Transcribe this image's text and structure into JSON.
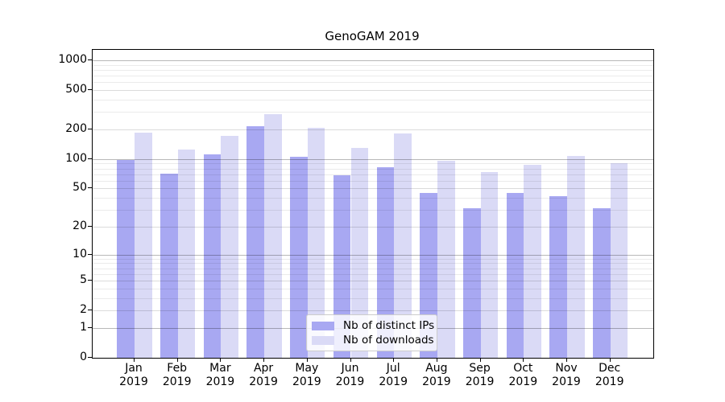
{
  "chart_data": {
    "type": "bar",
    "title": "GenoGAM 2019",
    "y_scale": "log1p",
    "ylim": [
      0,
      1276
    ],
    "y_ticks": [
      0,
      1,
      2,
      5,
      10,
      20,
      50,
      100,
      200,
      500,
      1000
    ],
    "y_minor_ticks": [
      3,
      4,
      6,
      7,
      8,
      9,
      30,
      40,
      60,
      70,
      80,
      90,
      300,
      400,
      600,
      700,
      800,
      900
    ],
    "categories": [
      "Jan 2019",
      "Feb 2019",
      "Mar 2019",
      "Apr 2019",
      "May 2019",
      "Jun 2019",
      "Jul 2019",
      "Aug 2019",
      "Sep 2019",
      "Oct 2019",
      "Nov 2019",
      "Dec 2019"
    ],
    "series": [
      {
        "name": "Nb of distinct IPs",
        "color": "#a8a8f2",
        "values": [
          97,
          71,
          112,
          215,
          106,
          68,
          83,
          45,
          31,
          45,
          42,
          31
        ]
      },
      {
        "name": "Nb of downloads",
        "color": "#dadaf6",
        "values": [
          185,
          124,
          173,
          288,
          208,
          131,
          182,
          96,
          74,
          88,
          108,
          90
        ]
      }
    ],
    "legend_position": "lower center",
    "grid": true,
    "xlabel": "",
    "ylabel": ""
  }
}
